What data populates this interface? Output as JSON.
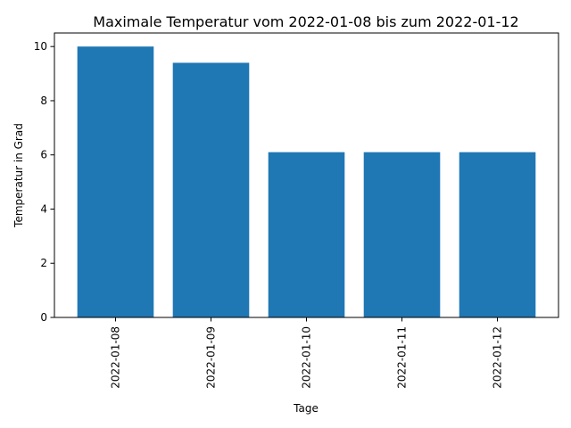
{
  "chart_data": {
    "type": "bar",
    "title": "Maximale Temperatur vom 2022-01-08 bis zum 2022-01-12",
    "xlabel": "Tage",
    "ylabel": "Temperatur in Grad",
    "categories": [
      "2022-01-08",
      "2022-01-09",
      "2022-01-10",
      "2022-01-11",
      "2022-01-12"
    ],
    "values": [
      10.0,
      9.4,
      6.1,
      6.1,
      6.1
    ],
    "ylim": [
      0,
      10.5
    ],
    "yticks": [
      0,
      2,
      4,
      6,
      8,
      10
    ],
    "x_tick_rotation": "vertical",
    "grid": false,
    "legend": "none",
    "bar_color": "#1f77b4"
  }
}
